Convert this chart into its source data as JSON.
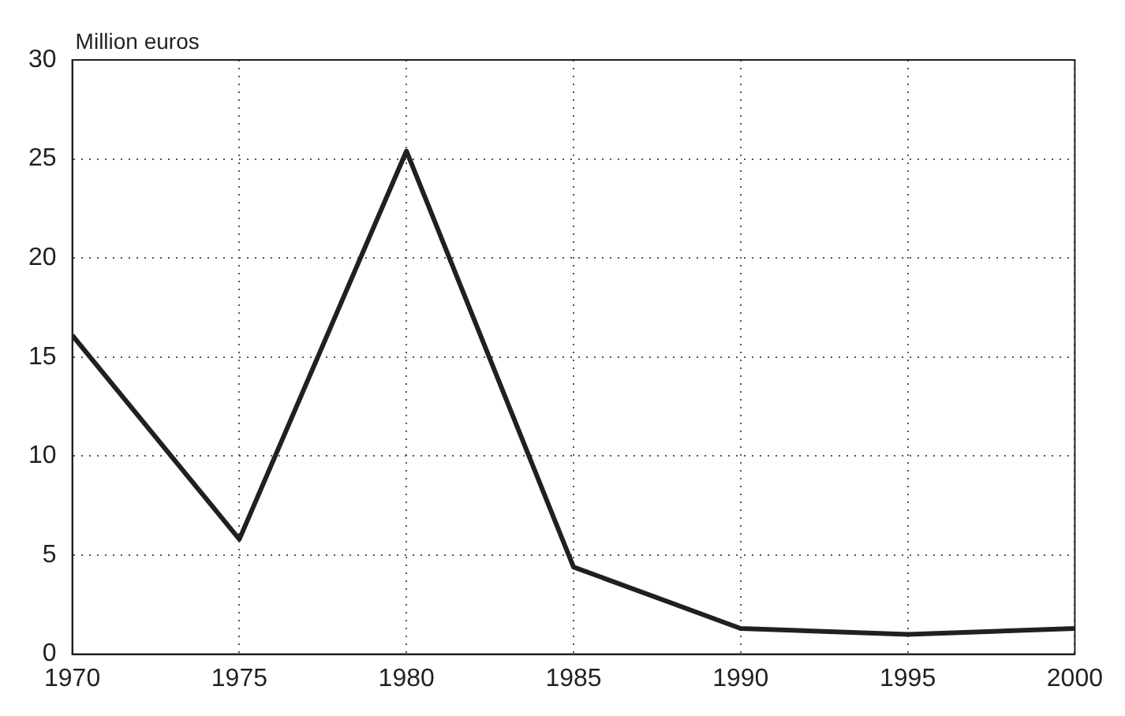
{
  "chart_data": {
    "type": "line",
    "ylabel": "Million euros",
    "x": [
      1970,
      1975,
      1980,
      1985,
      1990,
      1995,
      2000
    ],
    "series": [
      {
        "color": "#231f20",
        "values": [
          16.1,
          5.8,
          25.4,
          4.4,
          1.3,
          1.0,
          1.3
        ]
      }
    ],
    "xlim": [
      1970,
      2000
    ],
    "xticks": [
      1970,
      1975,
      1980,
      1985,
      1990,
      1995,
      2000
    ],
    "ylim": [
      0,
      30
    ],
    "yticks": [
      0,
      5,
      10,
      15,
      20,
      25,
      30
    ],
    "grid": true,
    "legend": false,
    "marker": "none",
    "line_style": "solid"
  }
}
